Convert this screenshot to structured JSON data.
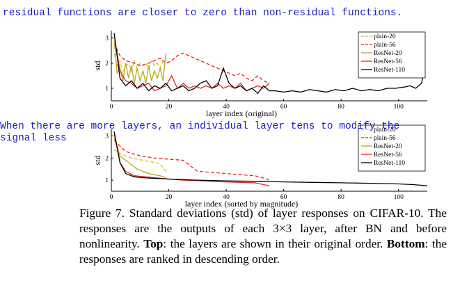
{
  "notes": {
    "top": "residual functions are closer to zero than non-residual functions.",
    "middle_line1": "When there are more layers, an individual layer tens to modify the",
    "middle_line2": "signal less"
  },
  "caption": {
    "title": "Figure 7. Standard deviations (std) of layer responses on CIFAR-10.",
    "sentence1": "The responses are the outputs of each 3×3 layer, after BN and before nonlinearity.",
    "top_label": "Top",
    "top_text": ": the layers are shown in their original order.",
    "bottom_label": "Bottom",
    "bottom_text": ": the responses are ranked in descending order."
  },
  "chart_data": [
    {
      "type": "line",
      "xlabel": "layer index (original)",
      "ylabel": "std",
      "xlim": [
        0,
        110
      ],
      "ylim": [
        0.5,
        3.3
      ],
      "xticks": [
        0,
        20,
        40,
        60,
        80,
        100
      ],
      "yticks": [
        1,
        2,
        3
      ],
      "legend_position": "top-right",
      "series": [
        {
          "name": "plain-20",
          "color": "#d8c020",
          "dash": "5,3",
          "x": [
            1,
            2,
            3,
            4,
            5,
            6,
            7,
            8,
            9,
            10,
            11,
            12,
            13,
            14,
            15,
            16,
            17,
            18,
            19
          ],
          "y": [
            2.4,
            1.9,
            2.1,
            1.6,
            1.9,
            2.0,
            1.7,
            2.1,
            1.8,
            2.0,
            1.9,
            2.0,
            1.8,
            2.1,
            1.9,
            2.0,
            1.8,
            2.1,
            2.2
          ]
        },
        {
          "name": "plain-56",
          "color": "#e8201c",
          "dash": "5,3",
          "x": [
            1,
            3,
            5,
            8,
            10,
            13,
            15,
            17,
            19,
            21,
            23,
            25,
            27,
            29,
            31,
            33,
            35,
            37,
            39,
            41,
            43,
            45,
            47,
            49,
            51,
            53,
            55
          ],
          "y": [
            2.8,
            2.3,
            2.1,
            2.0,
            1.9,
            2.0,
            2.1,
            2.2,
            2.0,
            2.1,
            2.3,
            2.4,
            2.3,
            2.2,
            2.1,
            2.0,
            1.9,
            1.8,
            1.7,
            1.6,
            1.5,
            1.6,
            1.4,
            1.3,
            1.5,
            1.3,
            1.2
          ]
        },
        {
          "name": "ResNet-20",
          "color": "#b8a818",
          "dash": "",
          "x": [
            1,
            2,
            3,
            4,
            5,
            6,
            7,
            8,
            9,
            10,
            11,
            12,
            13,
            14,
            15,
            16,
            17,
            18,
            19
          ],
          "y": [
            2.9,
            1.6,
            1.8,
            1.3,
            2.0,
            1.4,
            1.9,
            1.2,
            1.8,
            1.3,
            1.7,
            1.2,
            1.9,
            1.3,
            1.7,
            1.4,
            1.8,
            1.3,
            2.4
          ]
        },
        {
          "name": "ResNet-56",
          "color": "#e8201c",
          "dash": "",
          "x": [
            1,
            3,
            5,
            7,
            9,
            11,
            13,
            15,
            17,
            19,
            21,
            23,
            25,
            27,
            29,
            31,
            33,
            35,
            37,
            39,
            41,
            43,
            45,
            47,
            49,
            51,
            53,
            55
          ],
          "y": [
            3.1,
            1.7,
            1.3,
            1.2,
            1.0,
            1.1,
            1.2,
            0.9,
            1.0,
            1.1,
            1.5,
            1.0,
            1.2,
            1.0,
            1.1,
            1.0,
            1.1,
            1.0,
            1.2,
            1.0,
            1.1,
            1.0,
            1.2,
            0.9,
            1.0,
            1.1,
            1.0,
            1.2
          ]
        },
        {
          "name": "ResNet-110",
          "color": "#000000",
          "dash": "",
          "x": [
            1,
            3,
            5,
            7,
            9,
            11,
            13,
            15,
            17,
            19,
            21,
            23,
            25,
            27,
            29,
            31,
            33,
            35,
            37,
            39,
            41,
            43,
            45,
            47,
            49,
            51,
            53,
            55,
            57,
            60,
            63,
            66,
            69,
            72,
            75,
            78,
            81,
            84,
            87,
            90,
            93,
            96,
            99,
            102,
            104,
            106,
            108,
            109
          ],
          "y": [
            3.2,
            1.4,
            1.1,
            1.3,
            1.0,
            1.2,
            0.9,
            1.1,
            1.0,
            1.2,
            0.9,
            1.0,
            1.1,
            0.9,
            1.0,
            1.2,
            1.3,
            1.0,
            1.1,
            1.8,
            1.2,
            1.0,
            1.1,
            0.9,
            1.0,
            0.8,
            1.1,
            0.9,
            0.9,
            0.85,
            0.9,
            0.85,
            0.95,
            0.9,
            0.85,
            0.95,
            0.9,
            1.0,
            0.9,
            0.95,
            0.9,
            1.0,
            1.0,
            1.05,
            1.1,
            1.0,
            1.2,
            1.7
          ]
        }
      ]
    },
    {
      "type": "line",
      "xlabel": "layer index (sorted by magnitude)",
      "ylabel": "std",
      "xlim": [
        0,
        110
      ],
      "ylim": [
        0.5,
        3.3
      ],
      "xticks": [
        0,
        20,
        40,
        60,
        80,
        100
      ],
      "yticks": [
        1,
        2,
        3
      ],
      "legend_position": "top-right",
      "series": [
        {
          "name": "plain-20",
          "color": "#d8c020",
          "dash": "5,3",
          "x": [
            1,
            3,
            5,
            7,
            9,
            11,
            13,
            15,
            17,
            19
          ],
          "y": [
            2.4,
            2.2,
            2.1,
            2.0,
            1.95,
            1.9,
            1.85,
            1.8,
            1.75,
            1.4
          ]
        },
        {
          "name": "plain-56",
          "color": "#e8201c",
          "dash": "5,3",
          "x": [
            1,
            5,
            10,
            15,
            20,
            25,
            28,
            30,
            35,
            40,
            45,
            50,
            53,
            55
          ],
          "y": [
            2.8,
            2.3,
            2.1,
            2.0,
            1.95,
            1.9,
            1.6,
            1.4,
            1.35,
            1.3,
            1.25,
            1.2,
            1.1,
            1.0
          ]
        },
        {
          "name": "ResNet-20",
          "color": "#b8a818",
          "dash": "",
          "x": [
            1,
            3,
            5,
            7,
            9,
            11,
            13,
            15,
            17,
            19
          ],
          "y": [
            2.9,
            2.1,
            1.9,
            1.7,
            1.5,
            1.4,
            1.3,
            1.25,
            1.2,
            1.1
          ]
        },
        {
          "name": "ResNet-56",
          "color": "#e8201c",
          "dash": "",
          "x": [
            1,
            3,
            5,
            8,
            12,
            16,
            20,
            25,
            30,
            35,
            40,
            45,
            50,
            53,
            55
          ],
          "y": [
            3.1,
            1.8,
            1.4,
            1.2,
            1.15,
            1.1,
            1.05,
            1.0,
            0.98,
            0.95,
            0.92,
            0.9,
            0.88,
            0.8,
            0.75
          ]
        },
        {
          "name": "ResNet-110",
          "color": "#000000",
          "dash": "",
          "x": [
            1,
            3,
            5,
            8,
            12,
            20,
            30,
            40,
            50,
            60,
            70,
            80,
            90,
            100,
            105,
            110
          ],
          "y": [
            3.2,
            1.8,
            1.3,
            1.15,
            1.1,
            1.05,
            1.0,
            0.97,
            0.95,
            0.92,
            0.9,
            0.88,
            0.86,
            0.83,
            0.8,
            0.75
          ]
        }
      ]
    }
  ]
}
